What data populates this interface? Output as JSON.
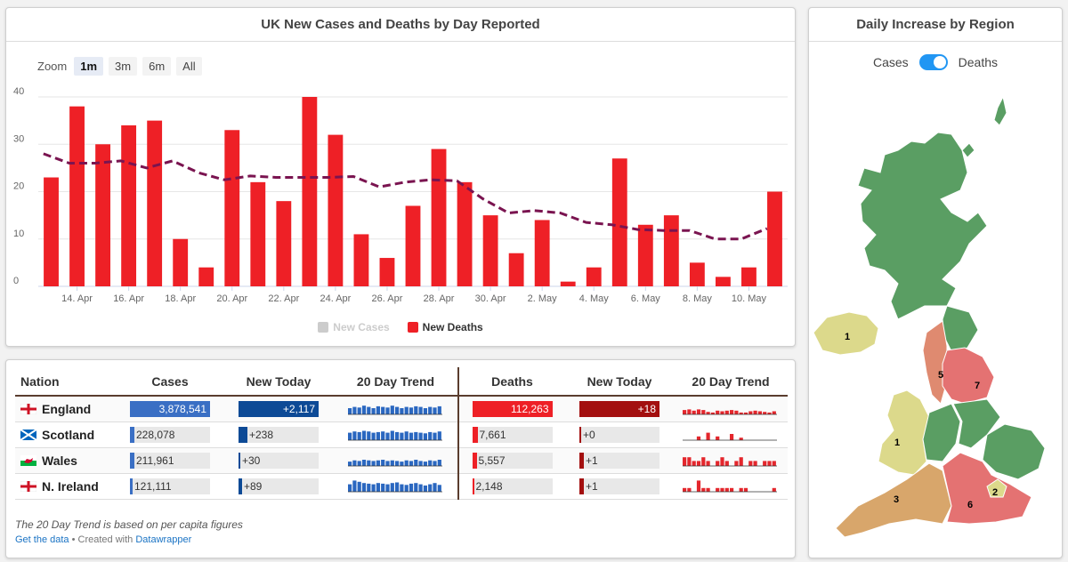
{
  "chart": {
    "title": "UK New Cases and Deaths by Day Reported",
    "zoom_label": "Zoom",
    "zoom_buttons": [
      "1m",
      "3m",
      "6m",
      "All"
    ],
    "zoom_active": "1m",
    "legend": {
      "new_cases": "New Cases",
      "new_deaths": "New Deaths"
    },
    "colors": {
      "bars": "#ee2026",
      "avg": "#7a1450",
      "cases_legend": "#cccccc"
    }
  },
  "chart_data": {
    "type": "bar",
    "title": "UK New Cases and Deaths by Day Reported",
    "xlabel": "",
    "ylabel": "",
    "ylim": [
      0,
      40
    ],
    "yticks": [
      0,
      10,
      20,
      30,
      40
    ],
    "x_tick_labels": [
      "14. Apr",
      "16. Apr",
      "18. Apr",
      "20. Apr",
      "22. Apr",
      "24. Apr",
      "26. Apr",
      "28. Apr",
      "30. Apr",
      "2. May",
      "4. May",
      "6. May",
      "8. May",
      "10. May"
    ],
    "categories": [
      "13 Apr",
      "14 Apr",
      "15 Apr",
      "16 Apr",
      "17 Apr",
      "18 Apr",
      "19 Apr",
      "20 Apr",
      "21 Apr",
      "22 Apr",
      "23 Apr",
      "24 Apr",
      "25 Apr",
      "26 Apr",
      "27 Apr",
      "28 Apr",
      "29 Apr",
      "30 Apr",
      "1 May",
      "2 May",
      "3 May",
      "4 May",
      "5 May",
      "6 May",
      "7 May",
      "8 May",
      "9 May",
      "10 May",
      "11 May"
    ],
    "series": [
      {
        "name": "New Deaths",
        "type": "bar",
        "values": [
          23,
          38,
          30,
          34,
          35,
          10,
          4,
          33,
          22,
          18,
          40,
          32,
          11,
          6,
          17,
          29,
          22,
          15,
          7,
          14,
          1,
          4,
          27,
          13,
          15,
          5,
          2,
          4,
          20
        ]
      },
      {
        "name": "7-day average",
        "type": "line",
        "values": [
          28,
          26,
          26,
          26.5,
          25,
          26.5,
          24,
          22.5,
          23.3,
          23,
          23,
          23,
          23.2,
          21,
          22,
          22.5,
          22.3,
          18.5,
          15.5,
          16,
          15.5,
          13.5,
          13,
          12,
          11.8,
          11.8,
          10,
          10,
          12.2
        ]
      }
    ]
  },
  "table": {
    "headers": [
      "Nation",
      "Cases",
      "New Today",
      "20 Day Trend",
      "Deaths",
      "New Today",
      "20 Day Trend"
    ],
    "rows": [
      {
        "nation": "England",
        "cases": "3,878,541",
        "cases_frac": 1.0,
        "new_cases": "+2,117",
        "new_cases_frac": 1.0,
        "deaths": "112,263",
        "deaths_frac": 1.0,
        "new_deaths": "+18",
        "new_deaths_frac": 1.0,
        "case_trend": [
          0.5,
          0.6,
          0.55,
          0.7,
          0.6,
          0.5,
          0.65,
          0.6,
          0.55,
          0.7,
          0.6,
          0.5,
          0.6,
          0.55,
          0.65,
          0.6,
          0.5,
          0.6,
          0.55,
          0.65
        ],
        "death_trend": [
          0.35,
          0.4,
          0.3,
          0.4,
          0.35,
          0.2,
          0.15,
          0.3,
          0.25,
          0.3,
          0.35,
          0.3,
          0.15,
          0.15,
          0.25,
          0.3,
          0.25,
          0.2,
          0.15,
          0.25
        ]
      },
      {
        "nation": "Scotland",
        "cases": "228,078",
        "cases_frac": 0.059,
        "new_cases": "+238",
        "new_cases_frac": 0.112,
        "deaths": "7,661",
        "deaths_frac": 0.068,
        "new_deaths": "+0",
        "new_deaths_frac": 0.0,
        "case_trend": [
          0.6,
          0.7,
          0.65,
          0.75,
          0.7,
          0.6,
          0.65,
          0.7,
          0.6,
          0.75,
          0.65,
          0.6,
          0.7,
          0.6,
          0.65,
          0.6,
          0.55,
          0.65,
          0.6,
          0.7
        ],
        "death_trend": [
          0.0,
          0.0,
          0.0,
          0.3,
          0.0,
          0.6,
          0.0,
          0.3,
          0.0,
          0.0,
          0.5,
          0.0,
          0.2,
          0.0,
          0.0,
          0.0,
          0.0,
          0.0,
          0.0,
          0.0
        ]
      },
      {
        "nation": "Wales",
        "cases": "211,961",
        "cases_frac": 0.055,
        "new_cases": "+30",
        "new_cases_frac": 0.014,
        "deaths": "5,557",
        "deaths_frac": 0.05,
        "new_deaths": "+1",
        "new_deaths_frac": 0.056,
        "case_trend": [
          0.35,
          0.45,
          0.4,
          0.5,
          0.45,
          0.4,
          0.45,
          0.5,
          0.4,
          0.45,
          0.4,
          0.35,
          0.45,
          0.4,
          0.5,
          0.4,
          0.35,
          0.45,
          0.4,
          0.5
        ],
        "death_trend": [
          0.7,
          0.7,
          0.4,
          0.4,
          0.7,
          0.4,
          0.0,
          0.4,
          0.7,
          0.4,
          0.0,
          0.4,
          0.7,
          0.0,
          0.4,
          0.4,
          0.0,
          0.4,
          0.4,
          0.4
        ]
      },
      {
        "nation": "N. Ireland",
        "cases": "121,111",
        "cases_frac": 0.031,
        "new_cases": "+89",
        "new_cases_frac": 0.042,
        "deaths": "2,148",
        "deaths_frac": 0.019,
        "new_deaths": "+1",
        "new_deaths_frac": 0.056,
        "case_trend": [
          0.6,
          0.9,
          0.8,
          0.7,
          0.65,
          0.6,
          0.7,
          0.65,
          0.6,
          0.7,
          0.75,
          0.6,
          0.55,
          0.65,
          0.7,
          0.6,
          0.5,
          0.6,
          0.7,
          0.55
        ],
        "death_trend": [
          0.3,
          0.3,
          0.0,
          0.9,
          0.3,
          0.3,
          0.0,
          0.3,
          0.3,
          0.3,
          0.3,
          0.0,
          0.3,
          0.3,
          0.0,
          0.0,
          0.0,
          0.0,
          0.0,
          0.3
        ]
      }
    ],
    "colors": {
      "cases_bar": "#3a6fc4",
      "new_cases_bar": "#0d4a96",
      "deaths_bar": "#ee2026",
      "new_deaths_bar": "#a30f0f",
      "trend_cases": "#2a67c0",
      "trend_deaths": "#e4262c"
    },
    "footnote": "The 20 Day Trend is based on per capita figures",
    "get_data": "Get the data",
    "created_with": " • Created with ",
    "datawrapper": "Datawrapper"
  },
  "map": {
    "title": "Daily Increase by Region",
    "toggle_left": "Cases",
    "toggle_right": "Deaths",
    "toggle_state": "Deaths",
    "region_labels": [
      "1",
      "5",
      "7",
      "1",
      "3",
      "6",
      "2"
    ],
    "colors": {
      "scotland": "#5a9e63",
      "green": "#5a9e63",
      "yellow": "#dcd98b",
      "orange": "#d8a66b",
      "salmon": "#df8a70",
      "red": "#e47272"
    }
  }
}
